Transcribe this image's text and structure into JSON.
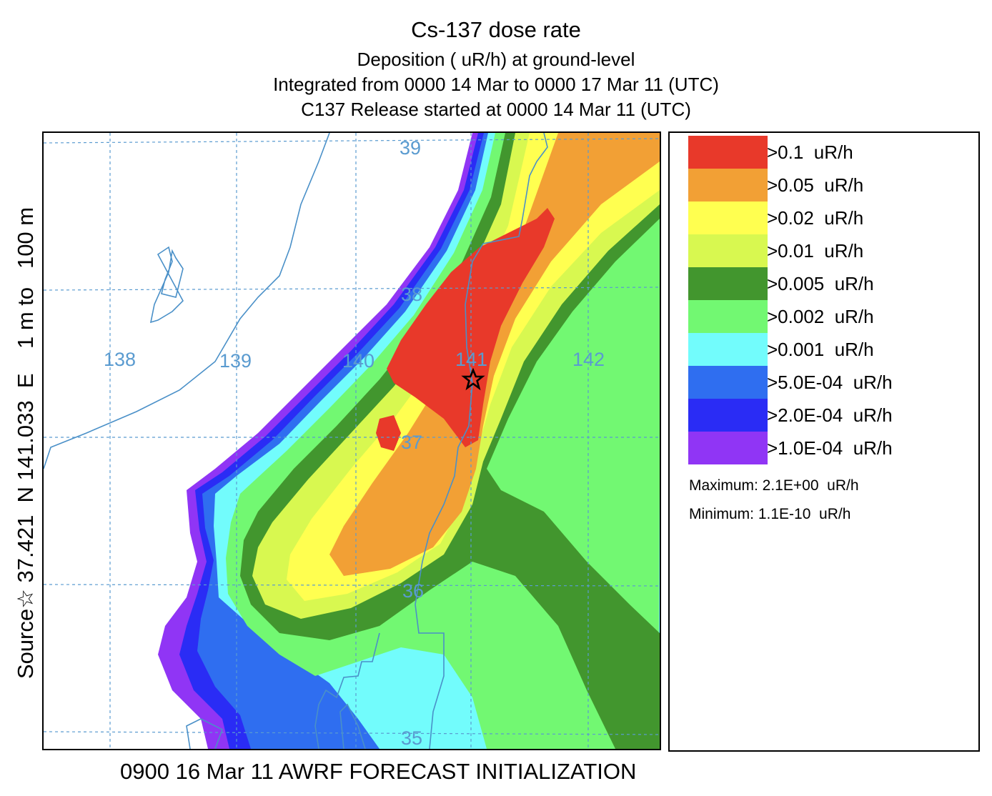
{
  "title": "Cs-137 dose rate",
  "subtitle_lines": [
    "Deposition  ( uR/h) at ground-level",
    "Integrated from 0000 14 Mar to 0000 17 Mar 11 (UTC)",
    "C137 Release started at 0000 14 Mar 11 (UTC)"
  ],
  "side_label": "Source☆ 37.421  N 141.033  E    1 m to   100 m",
  "bottom_label": "0900 16 Mar 11 AWRF FORECAST INITIALIZATION",
  "map": {
    "longitude_labels": [
      "138",
      "139",
      "140",
      "141",
      "142"
    ],
    "latitude_labels": [
      "39",
      "38",
      "37",
      "36",
      "35"
    ],
    "source_marker": "star-icon",
    "grid_color": "#5a9bd0",
    "coast_color": "#4a90c8"
  },
  "legend": {
    "items": [
      {
        "label": ">0.1  uR/h",
        "color": "#e8392a"
      },
      {
        "label": ">0.05  uR/h",
        "color": "#f2a035"
      },
      {
        "label": ">0.02  uR/h",
        "color": "#ffff50"
      },
      {
        "label": ">0.01  uR/h",
        "color": "#d8f850"
      },
      {
        "label": ">0.005  uR/h",
        "color": "#42962e"
      },
      {
        "label": ">0.002  uR/h",
        "color": "#72f872"
      },
      {
        "label": ">0.001  uR/h",
        "color": "#72fcfc"
      },
      {
        "label": ">5.0E-04  uR/h",
        "color": "#2f6ef0"
      },
      {
        "label": ">2.0E-04  uR/h",
        "color": "#2a2cf5"
      },
      {
        "label": ">1.0E-04  uR/h",
        "color": "#9035f5"
      }
    ],
    "maximum": "Maximum: 2.1E+00  uR/h",
    "minimum": "Minimum: 1.1E-10  uR/h"
  }
}
